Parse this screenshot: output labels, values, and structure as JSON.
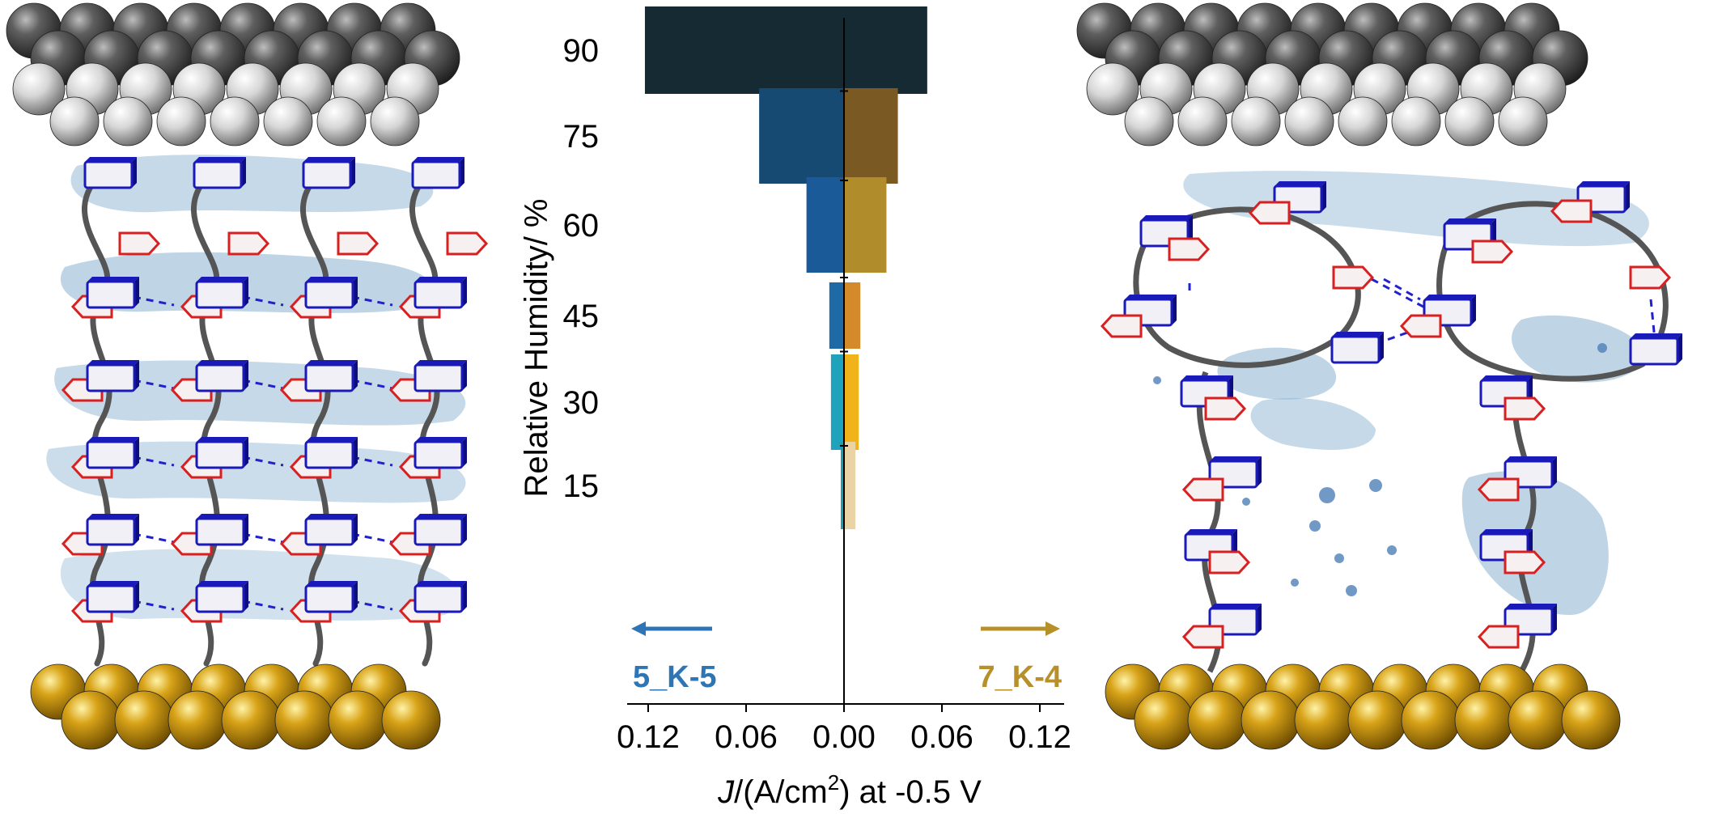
{
  "chart_data": {
    "type": "bar",
    "orientation": "horizontal-butterfly",
    "ylabel": "Relative Humidity/ %",
    "xlabel_parts": [
      "J",
      "/(A/cm",
      "2",
      ") at -0.5 V"
    ],
    "categories": [
      90,
      75,
      60,
      45,
      30,
      15
    ],
    "xticks": [
      -0.12,
      -0.06,
      0.0,
      0.06,
      0.12
    ],
    "xtick_labels": [
      "0.12",
      "0.06",
      "0.00",
      "0.06",
      "0.12"
    ],
    "xlim": [
      -0.12,
      0.12
    ],
    "series": [
      {
        "name": "5_K-5",
        "side": "left",
        "values": [
          0.122,
          0.052,
          0.023,
          0.009,
          0.008,
          0.002
        ],
        "colors": [
          "#162a33",
          "#174a72",
          "#1b5a99",
          "#1d6aa7",
          "#1fa3bd",
          "#1e9fb0"
        ],
        "label_color": "#2e75b6"
      },
      {
        "name": "7_K-4",
        "side": "right",
        "values": [
          0.051,
          0.033,
          0.026,
          0.01,
          0.009,
          0.007
        ],
        "colors": [
          "#162a33",
          "#7a5a22",
          "#b08c2b",
          "#d48a2a",
          "#f0b31a",
          "#ead4a6"
        ],
        "label_color": "#b8902a"
      }
    ],
    "arrows": {
      "left_color": "#2e75b6",
      "right_color": "#b8902a"
    }
  },
  "illustration": {
    "top_electrode_color": "#5a5a5a",
    "bottom_electrode_color": "#c89612",
    "chain_color": "#555555",
    "unit_box_color": "#1a1ab8",
    "unit_arrow_color": "#d82020",
    "water_color": "#8bb3d2"
  }
}
